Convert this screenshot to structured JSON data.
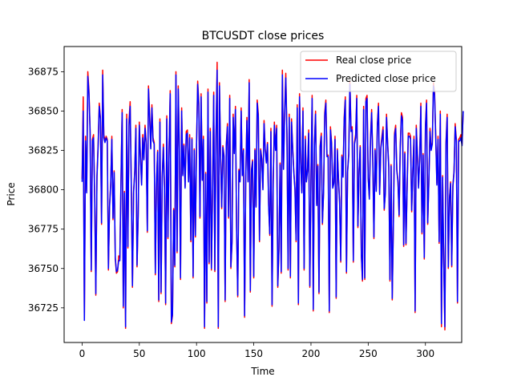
{
  "chart_data": {
    "type": "line",
    "title": "BTCUSDT close prices",
    "xlabel": "Time",
    "ylabel": "Price",
    "xlim": [
      -15.7,
      331.7
    ],
    "ylim": [
      36703,
      36891
    ],
    "xticks": [
      0,
      50,
      100,
      150,
      200,
      250,
      300
    ],
    "yticks": [
      36725,
      36750,
      36775,
      36800,
      36825,
      36850,
      36875
    ],
    "legend_position": "top-right",
    "grid": false,
    "series": [
      {
        "name": "Real close price",
        "color": "#ff0000",
        "values": [
          36807,
          36859,
          36718,
          36834,
          36799,
          36875,
          36863,
          36838,
          36748,
          36832,
          36835,
          36797,
          36733,
          36809,
          36829,
          36855,
          36846,
          36778,
          36876,
          36835,
          36831,
          36834,
          36832,
          36749,
          36790,
          36804,
          36834,
          36781,
          36812,
          36756,
          36747,
          36748,
          36758,
          36757,
          36808,
          36851,
          36725,
          36799,
          36712,
          36848,
          36763,
          36844,
          36856,
          36803,
          36738,
          36799,
          36812,
          36841,
          36751,
          36783,
          36843,
          36821,
          36804,
          36835,
          36820,
          36841,
          36831,
          36773,
          36866,
          36848,
          36827,
          36854,
          36833,
          36830,
          36746,
          36805,
          36825,
          36729,
          36845,
          36734,
          36808,
          36829,
          36802,
          36727,
          36847,
          36769,
          36826,
          36863,
          36715,
          36720,
          36788,
          36751,
          36875,
          36760,
          36866,
          36826,
          36743,
          36852,
          36810,
          36829,
          36802,
          36837,
          36838,
          36806,
          36835,
          36767,
          36833,
          36744,
          36826,
          36770,
          36829,
          36869,
          36855,
          36782,
          36861,
          36807,
          36834,
          36712,
          36811,
          36728,
          36864,
          36753,
          36839,
          36749,
          36799,
          36862,
          36748,
          36834,
          36881,
          36712,
          36868,
          36823,
          36788,
          36828,
          36822,
          36729,
          36829,
          36842,
          36782,
          36860,
          36750,
          36766,
          36848,
          36824,
          36853,
          36775,
          36732,
          36813,
          36806,
          36852,
          36810,
          36826,
          36719,
          36808,
          36846,
          36806,
          36870,
          36735,
          36813,
          36819,
          36744,
          36826,
          36790,
          36857,
          36848,
          36767,
          36826,
          36820,
          36801,
          36844,
          36826,
          36818,
          36830,
          36791,
          36771,
          36839,
          36726,
          36806,
          36843,
          36826,
          36841,
          36738,
          36762,
          36817,
          36747,
          36876,
          36814,
          36850,
          36874,
          36837,
          36749,
          36848,
          36744,
          36845,
          36827,
          36812,
          36801,
          36767,
          36854,
          36727,
          36861,
          36818,
          36799,
          36852,
          36749,
          36834,
          36806,
          36813,
          36838,
          36738,
          36808,
          36860,
          36723,
          36829,
          36850,
          36791,
          36816,
          36734,
          36828,
          36836,
          36778,
          36799,
          36849,
          36857,
          36822,
          36822,
          36722,
          36840,
          36830,
          36802,
          36805,
          36834,
          36731,
          36826,
          36808,
          36793,
          36754,
          36822,
          36809,
          36846,
          36859,
          36747,
          36812,
          36823,
          36869,
          36839,
          36840,
          36754,
          36830,
          36835,
          36860,
          36776,
          36812,
          36828,
          36758,
          36742,
          36853,
          36743,
          36858,
          36860,
          36808,
          36795,
          36833,
          36851,
          36820,
          36769,
          36826,
          36800,
          36842,
          36855,
          36798,
          36827,
          36834,
          36840,
          36787,
          36799,
          36848,
          36830,
          36815,
          36742,
          36816,
          36730,
          36778,
          36836,
          36841,
          36813,
          36806,
          36783,
          36828,
          36849,
          36846,
          36764,
          36824,
          36765,
          36801,
          36836,
          36836,
          36834,
          36786,
          36813,
          36834,
          36722,
          36841,
          36823,
          36802,
          36821,
          36855,
          36772,
          36823,
          36756,
          36841,
          36857,
          36778,
          36806,
          36839,
          36826,
          36830,
          36868,
          36862,
          36835,
          36804,
          36834,
          36766,
          36850,
          36713,
          36809,
          36754,
          36711,
          36831,
          36848,
          36750,
          36795,
          36805,
          36751,
          36803,
          36812,
          36842,
          36832,
          36728,
          36832,
          36833,
          36835,
          36829,
          36850
        ]
      },
      {
        "name": "Predicted close price",
        "color": "#0000ff",
        "values": [
          36805,
          36850,
          36717,
          36831,
          36798,
          36872,
          36861,
          36836,
          36749,
          36831,
          36833,
          36795,
          36734,
          36808,
          36827,
          36853,
          36845,
          36779,
          36873,
          36833,
          36830,
          36833,
          36831,
          36750,
          36789,
          36803,
          36832,
          36782,
          36811,
          36757,
          36748,
          36749,
          36755,
          36755,
          36806,
          36849,
          36726,
          36798,
          36713,
          36845,
          36764,
          36841,
          36853,
          36802,
          36739,
          36798,
          36811,
          36839,
          36752,
          36784,
          36841,
          36820,
          36803,
          36833,
          36819,
          36839,
          36829,
          36774,
          36864,
          36846,
          36826,
          36852,
          36831,
          36829,
          36747,
          36804,
          36824,
          36730,
          36843,
          36735,
          36807,
          36827,
          36801,
          36728,
          36845,
          36770,
          36825,
          36861,
          36716,
          36721,
          36787,
          36752,
          36873,
          36761,
          36864,
          36825,
          36744,
          36850,
          36809,
          36828,
          36801,
          36835,
          36836,
          36805,
          36833,
          36768,
          36832,
          36745,
          36825,
          36771,
          36828,
          36867,
          36853,
          36783,
          36859,
          36806,
          36832,
          36713,
          36810,
          36729,
          36862,
          36754,
          36837,
          36750,
          36798,
          36860,
          36749,
          36833,
          36876,
          36713,
          36866,
          36822,
          36789,
          36827,
          36821,
          36730,
          36828,
          36840,
          36783,
          36858,
          36751,
          36767,
          36846,
          36823,
          36851,
          36776,
          36733,
          36812,
          36805,
          36850,
          36809,
          36825,
          36720,
          36807,
          36844,
          36805,
          36868,
          36736,
          36812,
          36818,
          36745,
          36825,
          36789,
          36855,
          36846,
          36768,
          36825,
          36819,
          36800,
          36842,
          36825,
          36817,
          36829,
          36790,
          36772,
          36837,
          36727,
          36805,
          36841,
          36825,
          36839,
          36739,
          36763,
          36816,
          36748,
          36873,
          36813,
          36848,
          36871,
          36835,
          36750,
          36846,
          36745,
          36843,
          36826,
          36811,
          36800,
          36768,
          36852,
          36728,
          36859,
          36817,
          36798,
          36850,
          36750,
          36832,
          36805,
          36812,
          36836,
          36739,
          36807,
          36858,
          36724,
          36828,
          36848,
          36790,
          36815,
          36735,
          36827,
          36834,
          36779,
          36798,
          36847,
          36855,
          36821,
          36821,
          36723,
          36838,
          36829,
          36801,
          36804,
          36832,
          36732,
          36825,
          36807,
          36792,
          36755,
          36821,
          36808,
          36844,
          36857,
          36748,
          36811,
          36822,
          36867,
          36837,
          36838,
          36755,
          36829,
          36833,
          36858,
          36777,
          36811,
          36827,
          36759,
          36743,
          36851,
          36744,
          36856,
          36858,
          36807,
          36794,
          36831,
          36849,
          36819,
          36770,
          36825,
          36799,
          36840,
          36853,
          36797,
          36826,
          36832,
          36838,
          36788,
          36798,
          36846,
          36829,
          36814,
          36743,
          36815,
          36731,
          36779,
          36834,
          36839,
          36812,
          36805,
          36784,
          36827,
          36847,
          36844,
          36765,
          36823,
          36766,
          36800,
          36834,
          36834,
          36832,
          36787,
          36812,
          36832,
          36723,
          36839,
          36822,
          36801,
          36820,
          36853,
          36773,
          36822,
          36757,
          36839,
          36855,
          36779,
          36805,
          36837,
          36825,
          36829,
          36866,
          36860,
          36833,
          36803,
          36832,
          36767,
          36848,
          36715,
          36808,
          36755,
          36713,
          36829,
          36846,
          36751,
          36794,
          36804,
          36752,
          36802,
          36811,
          36840,
          36831,
          36729,
          36831,
          36831,
          36833,
          36828,
          36850
        ]
      }
    ]
  }
}
